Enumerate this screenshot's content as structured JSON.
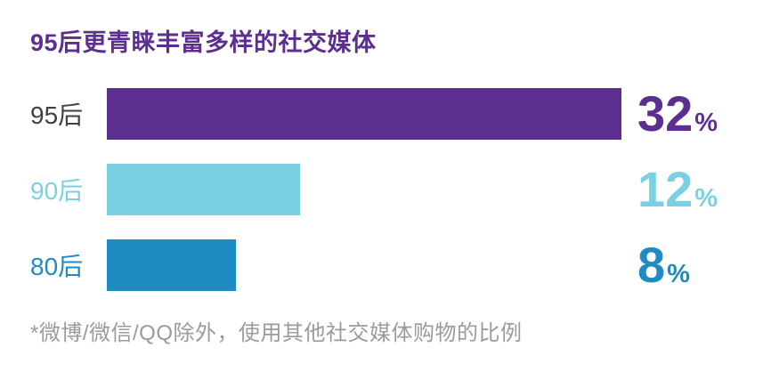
{
  "chart_data": {
    "type": "bar",
    "orientation": "horizontal",
    "title": "95后更青睐丰富多样的社交媒体",
    "categories": [
      "95后",
      "90后",
      "80后"
    ],
    "values": [
      32,
      12,
      8
    ],
    "value_suffix": "%",
    "xlim": [
      0,
      32
    ],
    "grid": false,
    "legend": false,
    "bar_colors": [
      "#5c2e90",
      "#7ad1e4",
      "#1e8bc3"
    ],
    "category_label_colors": [
      "#414042",
      "#7ad1e4",
      "#1e8bc3"
    ],
    "value_label_colors": [
      "#5c2e90",
      "#7ad1e4",
      "#1e8bc3"
    ],
    "footnote": "*微博/微信/QQ除外，使用其他社交媒体购物的比例"
  }
}
